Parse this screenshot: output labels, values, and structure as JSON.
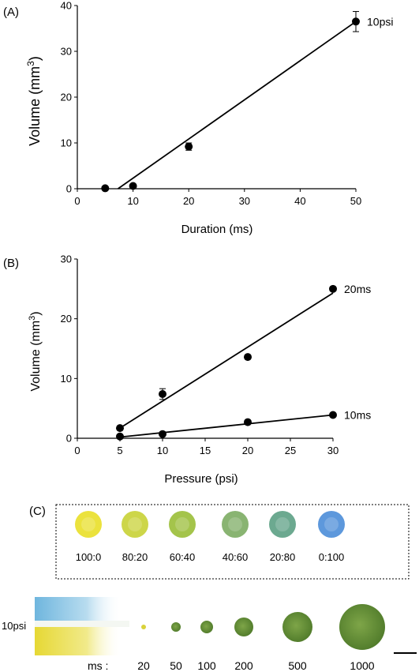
{
  "chart_data": [
    {
      "panel_label": "(A)",
      "type": "scatter",
      "xlabel": "Duration (ms)",
      "ylabel_main": "Volume (mm",
      "ylabel_sup": "3",
      "ylabel_end": ")",
      "xlim": [
        0,
        50
      ],
      "ylim": [
        0,
        40
      ],
      "xticks": [
        0,
        10,
        20,
        30,
        40,
        50
      ],
      "yticks": [
        0,
        10,
        20,
        30,
        40
      ],
      "series": [
        {
          "name": "10psi",
          "x": [
            5,
            10,
            20,
            50
          ],
          "y": [
            0.1,
            0.6,
            9.2,
            36.5
          ],
          "err": [
            0,
            0,
            0.8,
            2.2
          ],
          "fit": [
            [
              7.3,
              0
            ],
            [
              50,
              36.5
            ]
          ]
        }
      ]
    },
    {
      "panel_label": "(B)",
      "type": "scatter",
      "xlabel": "Pressure (psi)",
      "ylabel_main": "Volume (mm",
      "ylabel_sup": "3",
      "ylabel_end": ")",
      "xlim": [
        0,
        30
      ],
      "ylim": [
        0,
        30
      ],
      "xticks": [
        0,
        5,
        10,
        15,
        20,
        25,
        30
      ],
      "yticks": [
        0,
        10,
        20,
        30
      ],
      "series": [
        {
          "name": "20ms",
          "x": [
            5,
            10,
            20,
            30
          ],
          "y": [
            1.7,
            7.4,
            13.6,
            25.0
          ],
          "err": [
            0,
            0.9,
            0,
            0
          ],
          "fit": [
            [
              5,
              1.7
            ],
            [
              30,
              24.3
            ]
          ]
        },
        {
          "name": "10ms",
          "x": [
            5,
            10,
            20,
            30
          ],
          "y": [
            0.3,
            0.7,
            2.7,
            3.9
          ],
          "err": [
            0,
            0,
            0,
            0
          ],
          "fit": [
            [
              5,
              0.2
            ],
            [
              30,
              3.9
            ]
          ]
        }
      ]
    }
  ],
  "panel_c": {
    "label": "(C)",
    "mix_ratios": [
      "100:0",
      "80:20",
      "60:40",
      "40:60",
      "20:80",
      "0:100"
    ],
    "mix_colors": [
      "#e9e02c",
      "#c9d23a",
      "#9cbf3c",
      "#7fae66",
      "#5fa287",
      "#4f8fd9"
    ],
    "pressure_label": "10psi",
    "ms_prefix": "ms :",
    "durations": [
      "20",
      "50",
      "100",
      "200",
      "500",
      "1000"
    ],
    "drop_color": "#6e9a3a"
  }
}
